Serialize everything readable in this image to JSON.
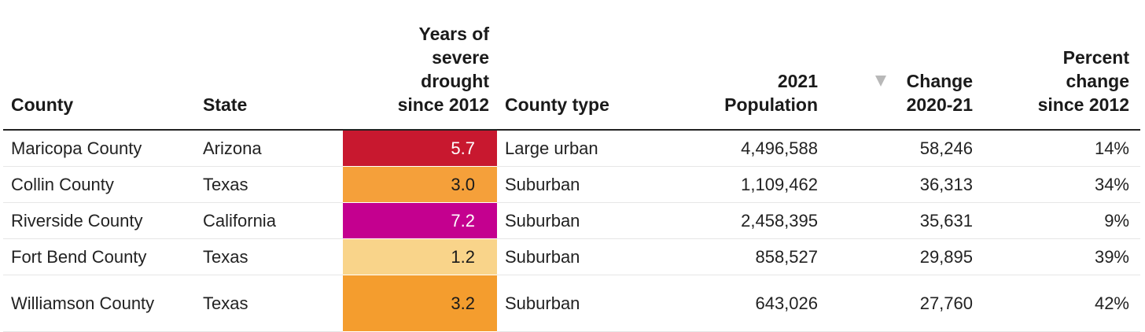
{
  "colors": {
    "drought_5_7": "#c8182f",
    "drought_3_0": "#f5a03a",
    "drought_7_2": "#c4008f",
    "drought_1_2": "#f9d48a",
    "drought_3_2": "#f49d2e",
    "header_rule": "#222222",
    "sort_arrow": "#b8b8b8"
  },
  "headers": {
    "county": "County",
    "state": "State",
    "drought": [
      "Years of",
      "severe",
      "drought",
      "since 2012"
    ],
    "county_type": "County type",
    "population": [
      "2021",
      "Population"
    ],
    "change": [
      "Change",
      "2020-21"
    ],
    "percent": [
      "Percent",
      "change",
      "since 2012"
    ]
  },
  "sort_icon": "sort-descending-icon",
  "rows": [
    {
      "county": "Maricopa County",
      "state": "Arizona",
      "drought": "5.7",
      "type": "Large urban",
      "population": "4,496,588",
      "change": "58,246",
      "percent": "14%"
    },
    {
      "county": "Collin County",
      "state": "Texas",
      "drought": "3.0",
      "type": "Suburban",
      "population": "1,109,462",
      "change": "36,313",
      "percent": "34%"
    },
    {
      "county": "Riverside County",
      "state": "California",
      "drought": "7.2",
      "type": "Suburban",
      "population": "2,458,395",
      "change": "35,631",
      "percent": "9%"
    },
    {
      "county": "Fort Bend County",
      "state": "Texas",
      "drought": "1.2",
      "type": "Suburban",
      "population": "858,527",
      "change": "29,895",
      "percent": "39%"
    },
    {
      "county": "Williamson County",
      "state": "Texas",
      "drought": "3.2",
      "type": "Suburban",
      "population": "643,026",
      "change": "27,760",
      "percent": "42%"
    }
  ]
}
